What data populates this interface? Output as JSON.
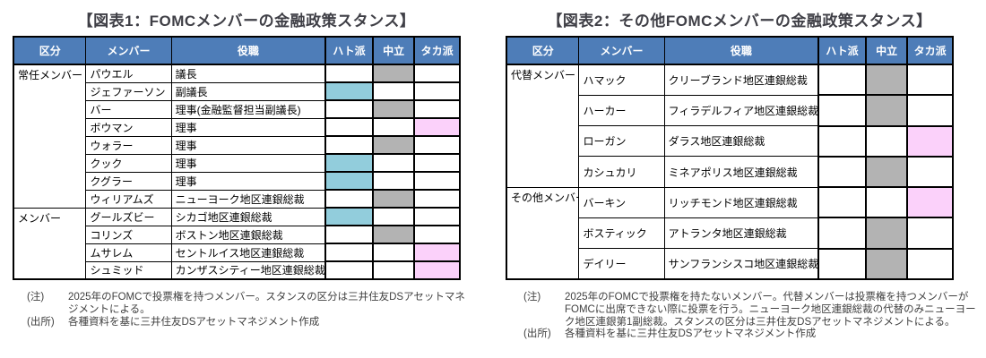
{
  "colors": {
    "header_bg": "#4E7DB8",
    "header_text": "#FFFFFF",
    "stance_dove": "#92CDDC",
    "stance_neutral": "#B3B3B3",
    "stance_hawk": "#FBD1FA",
    "title_text": "#3F3F46",
    "note_text": "#404040",
    "border": "#000000"
  },
  "figures": [
    {
      "title": "【図表1：FOMCメンバーの金融政策スタンス】",
      "columns": [
        "区分",
        "メンバー",
        "役職",
        "ハト派",
        "中立",
        "タカ派"
      ],
      "groups": [
        {
          "label": "常任メンバー",
          "members": [
            {
              "name": "パウエル",
              "role": "議長",
              "stance": "中立"
            },
            {
              "name": "ジェファーソン",
              "role": "副議長",
              "stance": "ハト派"
            },
            {
              "name": "バー",
              "role": "理事(金融監督担当副議長)",
              "stance": "中立"
            },
            {
              "name": "ボウマン",
              "role": "理事",
              "stance": "タカ派"
            },
            {
              "name": "ウォラー",
              "role": "理事",
              "stance": "中立"
            },
            {
              "name": "クック",
              "role": "理事",
              "stance": "ハト派"
            },
            {
              "name": "クグラー",
              "role": "理事",
              "stance": "ハト派"
            },
            {
              "name": "ウィリアムズ",
              "role": "ニューヨーク地区連銀総裁",
              "stance": "中立"
            }
          ]
        },
        {
          "label": "メンバー",
          "members": [
            {
              "name": "グールズビー",
              "role": "シカゴ地区連銀総裁",
              "stance": "ハト派"
            },
            {
              "name": "コリンズ",
              "role": "ボストン地区連銀総裁",
              "stance": "中立"
            },
            {
              "name": "ムサレム",
              "role": "セントルイス地区連銀総裁",
              "stance": "タカ派"
            },
            {
              "name": "シュミッド",
              "role": "カンザスシティー地区連銀総裁",
              "stance": "タカ派"
            }
          ]
        }
      ],
      "notes": [
        {
          "label": "(注)",
          "text": "2025年のFOMCで投票権を持つメンバー。スタンスの区分は三井住友DSアセットマネジメントによる。"
        },
        {
          "label": "(出所)",
          "text": "各種資料を基に三井住友DSアセットマネジメント作成"
        }
      ]
    },
    {
      "title": "【図表2：その他FOMCメンバーの金融政策スタンス】",
      "columns": [
        "区分",
        "メンバー",
        "役職",
        "ハト派",
        "中立",
        "タカ派"
      ],
      "groups": [
        {
          "label": "代替メンバー",
          "members": [
            {
              "name": "ハマック",
              "role": "クリーブランド地区連銀総裁",
              "stance": "中立"
            },
            {
              "name": "ハーカー",
              "role": "フィラデルフィア地区連銀総裁",
              "stance": "中立"
            },
            {
              "name": "ローガン",
              "role": "ダラス地区連銀総裁",
              "stance": "タカ派"
            },
            {
              "name": "カシュカリ",
              "role": "ミネアポリス地区連銀総裁",
              "stance": "中立"
            }
          ]
        },
        {
          "label": "その他メンバー",
          "members": [
            {
              "name": "バーキン",
              "role": "リッチモンド地区連銀総裁",
              "stance": "タカ派"
            },
            {
              "name": "ボスティック",
              "role": "アトランタ地区連銀総裁",
              "stance": "中立"
            },
            {
              "name": "デイリー",
              "role": "サンフランシスコ地区連銀総裁",
              "stance": "中立"
            }
          ]
        }
      ],
      "notes": [
        {
          "label": "(注)",
          "text": "2025年のFOMCで投票権を持たないメンバー。代替メンバーは投票権を持つメンバーがFOMCに出席できない際に投票を行う。ニューヨーク地区連銀総裁の代替のみニューヨーク地区連銀第1副総裁。スタンスの区分は三井住友DSアセットマネジメントによる。"
        },
        {
          "label": "(出所)",
          "text": "各種資料を基に三井住友DSアセットマネジメント作成"
        }
      ]
    }
  ]
}
